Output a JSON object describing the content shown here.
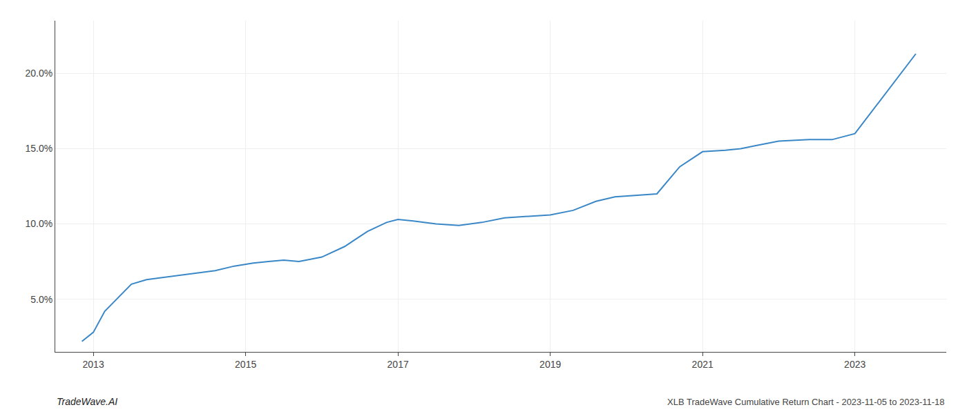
{
  "chart_data": {
    "type": "line",
    "title": "XLB TradeWave Cumulative Return Chart - 2023-11-05 to 2023-11-18",
    "annotations": [
      "TradeWave.AI"
    ],
    "x": [
      2012.85,
      2013.0,
      2013.15,
      2013.5,
      2013.7,
      2014.0,
      2014.3,
      2014.6,
      2014.85,
      2015.1,
      2015.3,
      2015.5,
      2015.7,
      2016.0,
      2016.3,
      2016.6,
      2016.85,
      2017.0,
      2017.2,
      2017.5,
      2017.8,
      2018.1,
      2018.4,
      2018.7,
      2019.0,
      2019.3,
      2019.6,
      2019.85,
      2020.1,
      2020.4,
      2020.7,
      2021.0,
      2021.3,
      2021.5,
      2021.7,
      2022.0,
      2022.4,
      2022.7,
      2023.0,
      2023.8
    ],
    "values": [
      2.2,
      2.8,
      4.2,
      6.0,
      6.3,
      6.5,
      6.7,
      6.9,
      7.2,
      7.4,
      7.5,
      7.6,
      7.5,
      7.8,
      8.5,
      9.5,
      10.1,
      10.3,
      10.2,
      10.0,
      9.9,
      10.1,
      10.4,
      10.5,
      10.6,
      10.9,
      11.5,
      11.8,
      11.9,
      12.0,
      13.8,
      14.8,
      14.9,
      15.0,
      15.2,
      15.5,
      15.6,
      15.6,
      16.0,
      21.3
    ],
    "color": "#3a87c8",
    "xlim": [
      2012.5,
      2024.2
    ],
    "ylim": [
      1.5,
      23.5
    ],
    "xticks": [
      2013,
      2015,
      2017,
      2019,
      2021,
      2023
    ],
    "yticks": [
      {
        "value": 5.0,
        "label": "5.0%"
      },
      {
        "value": 10.0,
        "label": "10.0%"
      },
      {
        "value": 15.0,
        "label": "15.0%"
      },
      {
        "value": 20.0,
        "label": "20.0%"
      }
    ],
    "grid": true
  }
}
